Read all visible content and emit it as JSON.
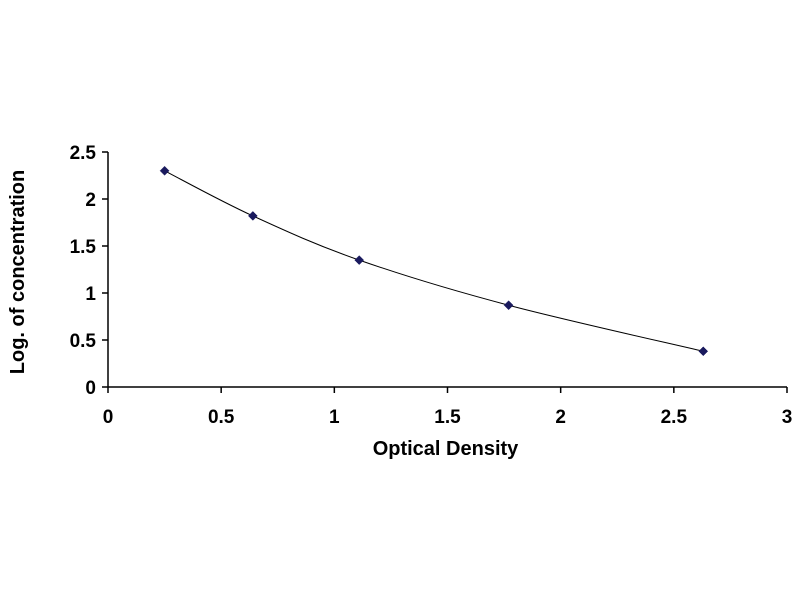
{
  "chart_data": {
    "type": "scatter",
    "title": "",
    "xlabel": "Optical Density",
    "ylabel": "Log. of concentration",
    "xlim": [
      0,
      3
    ],
    "ylim": [
      0,
      2.5
    ],
    "x_ticks": [
      "0",
      "0.5",
      "1",
      "1.5",
      "2",
      "2.5",
      "3"
    ],
    "y_ticks": [
      "0",
      "0.5",
      "1",
      "1.5",
      "2",
      "2.5"
    ],
    "grid": false,
    "legend": "none",
    "trendline": "smooth curve",
    "series": [
      {
        "x": [
          0.25,
          0.64,
          1.11,
          1.77,
          2.63
        ],
        "y": [
          2.3,
          1.82,
          1.35,
          0.87,
          0.38
        ],
        "marker": "diamond",
        "color": "#1a1a5e"
      }
    ]
  }
}
